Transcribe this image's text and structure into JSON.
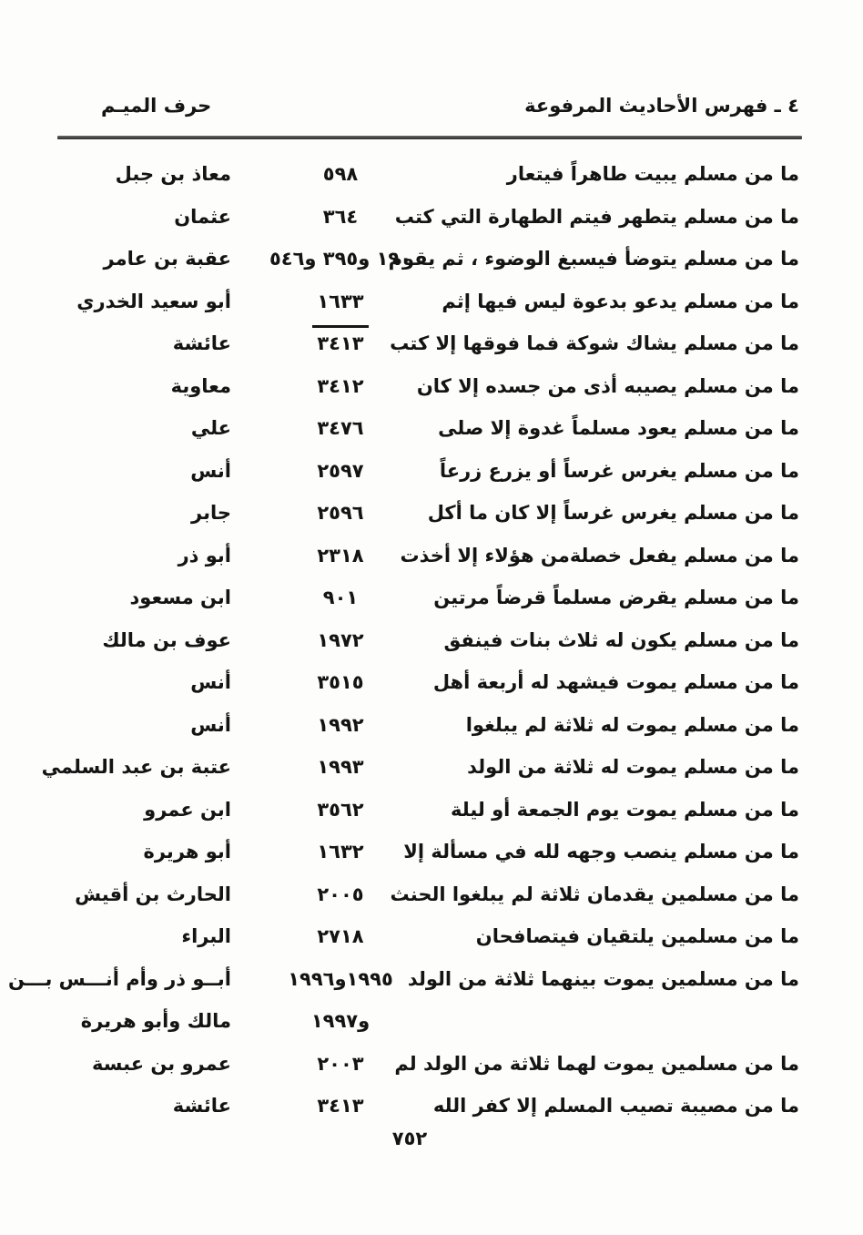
{
  "header": {
    "section_title": "٤ ـ فهرس الأحاديث المرفوعة",
    "letter_heading": "حرف الميـم"
  },
  "entries": [
    {
      "text": "ما من مسلم يبيت طاهراً فيتعار",
      "pages": "٥٩٨",
      "narrator": "معاذ بن جبل"
    },
    {
      "text": "ما من مسلم يتطهر فيتم الطهارة التي كتب",
      "pages": "٣٦٤",
      "narrator": "عثمان"
    },
    {
      "text": "ما من مسلم يتوضأ فيسبغ الوضوء ، ثم يقوم",
      "pages": "١٩٠ و٣٩٥ و٥٤٦",
      "narrator": "عقبة بن عامر"
    },
    {
      "text": "ما من مسلم يدعو بدعوة ليس فيها إثم",
      "pages": "١٦٣٣",
      "narrator": "أبو سعيد الخدري"
    },
    {
      "text": "ما من مسلم يشاك شوكة فما فوقها إلا كتب",
      "pages": "٣٤١٣",
      "narrator": "عائشة",
      "overline": true
    },
    {
      "text": "ما من مسلم يصيبه أذى من جسده إلا كان",
      "pages": "٣٤١٢",
      "narrator": "معاوية"
    },
    {
      "text": "ما من مسلم يعود مسلماً غدوة إلا صلى",
      "pages": "٣٤٧٦",
      "narrator": "علي"
    },
    {
      "text": "ما من مسلم يغرس غرساً أو يزرع زرعاً",
      "pages": "٢٥٩٧",
      "narrator": "أنس"
    },
    {
      "text": "ما من مسلم يغرس غرساً إلا كان ما أكل",
      "pages": "٢٥٩٦",
      "narrator": "جابر"
    },
    {
      "text": "ما من مسلم يفعل خصلةمن هؤلاء إلا أخذت",
      "pages": "٢٣١٨",
      "narrator": "أبو ذر"
    },
    {
      "text": "ما من مسلم يقرض مسلماً قرضاً مرتين",
      "pages": "٩٠١",
      "narrator": "ابن مسعود"
    },
    {
      "text": "ما من مسلم يكون له ثلاث بنات فينفق",
      "pages": "١٩٧٢",
      "narrator": "عوف بن مالك"
    },
    {
      "text": "ما من مسلم يموت فيشهد له أربعة أهل",
      "pages": "٣٥١٥",
      "narrator": "أنس"
    },
    {
      "text": "ما من مسلم يموت له ثلاثة لم يبلغوا",
      "pages": "١٩٩٢",
      "narrator": "أنس"
    },
    {
      "text": "ما من مسلم يموت له ثلاثة من الولد",
      "pages": "١٩٩٣",
      "narrator": "عتبة بن عبد السلمي"
    },
    {
      "text": "ما من مسلم يموت يوم الجمعة أو ليلة",
      "pages": "٣٥٦٢",
      "narrator": "ابن عمرو"
    },
    {
      "text": "ما من مسلم ينصب وجهه لله في مسألة إلا",
      "pages": "١٦٣٢",
      "narrator": "أبو هريرة"
    },
    {
      "text": "ما من مسلمين يقدمان ثلاثة لم يبلغوا الحنث",
      "pages": "٢٠٠٥",
      "narrator": "الحارث بن أقيش"
    },
    {
      "text": "ما من مسلمين يلتقيان فيتصافحان",
      "pages": "٢٧١٨",
      "narrator": "البراء"
    },
    {
      "text": "ما من مسلمين يموت بينهما ثلاثة من الولد",
      "pages": "١٩٩٥و١٩٩٦",
      "narrator": "أبــو ذر وأم أنـــس بـــن"
    },
    {
      "text": "",
      "pages": "و١٩٩٧",
      "narrator": "مالك وأبو هريرة"
    },
    {
      "text": "ما من مسلمين يموت لهما ثلاثة من الولد لم",
      "pages": "٢٠٠٣",
      "narrator": "عمرو بن عبسة"
    },
    {
      "text": "ما من مصيبة تصيب المسلم إلا كفر الله",
      "pages": "٣٤١٣",
      "narrator": "عائشة"
    }
  ],
  "footer": {
    "page_number": "٧٥٢"
  }
}
